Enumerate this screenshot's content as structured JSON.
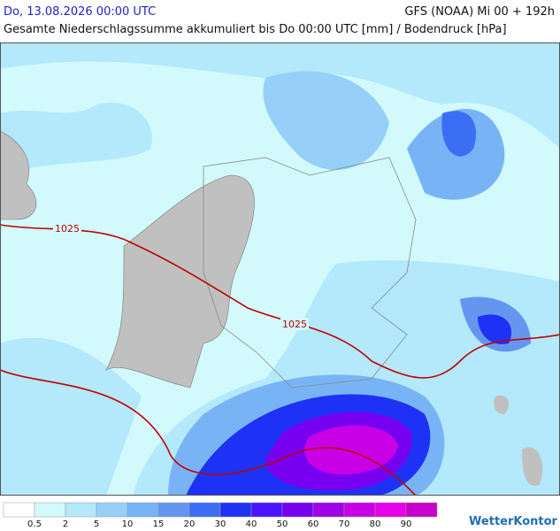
{
  "header": {
    "datetime": "Do, 13.08.2026 00:00 UTC",
    "model": "GFS (NOAA) Mi 00 + 192h",
    "subtitle": "Gesamte Niederschlagssumme akkumuliert bis Do 00:00 UTC [mm] / Bodendruck [hPa]"
  },
  "map": {
    "isobars": [
      {
        "label": "1025"
      },
      {
        "label": "1025"
      }
    ]
  },
  "legend": {
    "colors": [
      "#ffffff",
      "#d2fafd",
      "#b4e8fb",
      "#96d0f8",
      "#78b4f5",
      "#6496f0",
      "#3c6ef5",
      "#1e32f5",
      "#4b14ff",
      "#7800f0",
      "#a000e6",
      "#c800e6",
      "#e600e6",
      "#c800c8"
    ],
    "ticks": [
      0.5,
      2,
      5,
      10,
      15,
      20,
      30,
      40,
      50,
      60,
      70,
      80,
      90
    ]
  },
  "brand": "WetterKontor"
}
